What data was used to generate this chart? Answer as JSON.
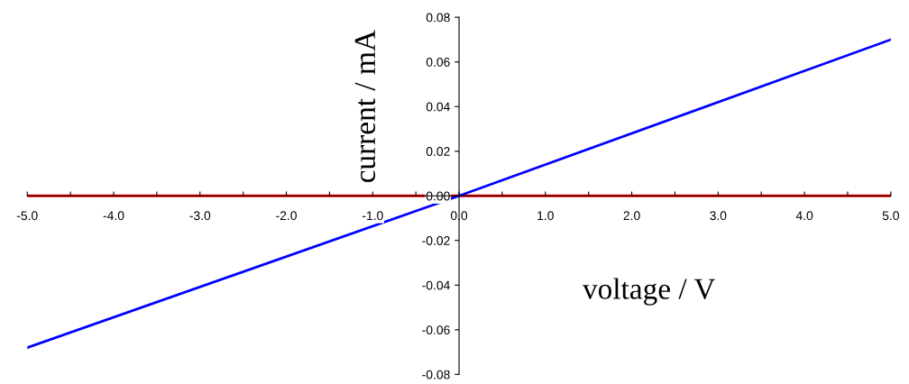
{
  "chart_data": {
    "type": "line",
    "xlabel": "voltage / V",
    "ylabel": "current / mA",
    "xlim": [
      -5,
      5
    ],
    "ylim": [
      -0.08,
      0.08
    ],
    "xticks": [
      {
        "value": -5,
        "label": "-5.0"
      },
      {
        "value": -4.5,
        "label": null
      },
      {
        "value": -4,
        "label": "-4.0"
      },
      {
        "value": -3.5,
        "label": null
      },
      {
        "value": -3,
        "label": "-3.0"
      },
      {
        "value": -2.5,
        "label": null
      },
      {
        "value": -2,
        "label": "-2.0"
      },
      {
        "value": -1.5,
        "label": null
      },
      {
        "value": -1,
        "label": "-1.0"
      },
      {
        "value": -0.5,
        "label": null
      },
      {
        "value": 0,
        "label": "0.0"
      },
      {
        "value": 0.5,
        "label": null
      },
      {
        "value": 1,
        "label": "1.0"
      },
      {
        "value": 1.5,
        "label": null
      },
      {
        "value": 2,
        "label": "2.0"
      },
      {
        "value": 2.5,
        "label": null
      },
      {
        "value": 3,
        "label": "3.0"
      },
      {
        "value": 3.5,
        "label": null
      },
      {
        "value": 4,
        "label": "4.0"
      },
      {
        "value": 4.5,
        "label": null
      },
      {
        "value": 5,
        "label": "5.0"
      }
    ],
    "yticks": [
      {
        "value": -0.08,
        "label": "-0.08"
      },
      {
        "value": -0.06,
        "label": "-0.06"
      },
      {
        "value": -0.04,
        "label": "-0.04"
      },
      {
        "value": -0.02,
        "label": "-0.02"
      },
      {
        "value": 0,
        "label": "0.00"
      },
      {
        "value": 0.02,
        "label": "0.02"
      },
      {
        "value": 0.04,
        "label": "0.04"
      },
      {
        "value": 0.06,
        "label": "0.06"
      },
      {
        "value": 0.08,
        "label": "0.08"
      }
    ],
    "grid": false,
    "legend": false,
    "marker": "none",
    "line_style": "solid",
    "series": [
      {
        "color": "#0000ff",
        "x": [
          -5,
          0,
          5
        ],
        "values": [
          -0.068,
          0,
          0.07
        ]
      },
      {
        "color": "#ff0000",
        "x": [
          -5,
          5
        ],
        "values": [
          0,
          0
        ]
      }
    ]
  }
}
